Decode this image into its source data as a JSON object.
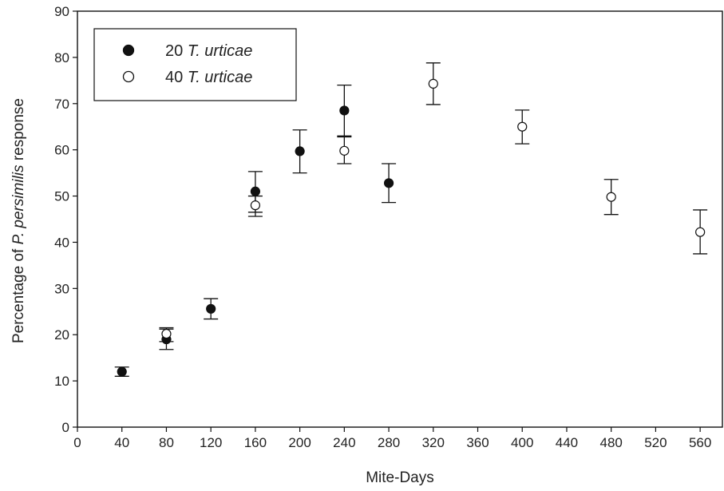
{
  "chart_data": {
    "type": "scatter",
    "xlabel": "Mite-Days",
    "ylabel_parts": [
      {
        "text": "Percentage of ",
        "italic": false
      },
      {
        "text": "P. persimilis",
        "italic": true
      },
      {
        "text": " response",
        "italic": false
      }
    ],
    "xlim": [
      0,
      580
    ],
    "ylim": [
      0,
      90
    ],
    "xticks": [
      0,
      40,
      80,
      120,
      160,
      200,
      240,
      280,
      320,
      360,
      400,
      440,
      480,
      520,
      560
    ],
    "yticks": [
      0,
      10,
      20,
      30,
      40,
      50,
      60,
      70,
      80,
      90
    ],
    "grid": false,
    "legend_position": "top-left",
    "series": [
      {
        "name_prefix": "20 ",
        "name_italic": "T. urticae",
        "marker": "filled-circle",
        "color": "#111111",
        "points": [
          {
            "x": 40,
            "y": 12.0,
            "err_low": 11.0,
            "err_high": 13.0
          },
          {
            "x": 80,
            "y": 19.0,
            "err_low": 16.8,
            "err_high": 21.2
          },
          {
            "x": 120,
            "y": 25.6,
            "err_low": 23.4,
            "err_high": 27.8
          },
          {
            "x": 160,
            "y": 51.0,
            "err_low": 46.5,
            "err_high": 55.3
          },
          {
            "x": 200,
            "y": 59.7,
            "err_low": 55.0,
            "err_high": 64.3
          },
          {
            "x": 240,
            "y": 68.5,
            "err_low": 63.0,
            "err_high": 74.0
          },
          {
            "x": 280,
            "y": 52.8,
            "err_low": 48.6,
            "err_high": 57.0
          }
        ]
      },
      {
        "name_prefix": "40 ",
        "name_italic": "T. urticae",
        "marker": "open-circle",
        "color": "#111111",
        "points": [
          {
            "x": 80,
            "y": 20.2,
            "err_low": 18.5,
            "err_high": 21.5
          },
          {
            "x": 160,
            "y": 48.0,
            "err_low": 45.6,
            "err_high": 50.0
          },
          {
            "x": 240,
            "y": 59.8,
            "err_low": 57.0,
            "err_high": 62.8
          },
          {
            "x": 320,
            "y": 74.3,
            "err_low": 69.8,
            "err_high": 78.8
          },
          {
            "x": 400,
            "y": 65.0,
            "err_low": 61.3,
            "err_high": 68.6
          },
          {
            "x": 480,
            "y": 49.8,
            "err_low": 46.0,
            "err_high": 53.6
          },
          {
            "x": 560,
            "y": 42.2,
            "err_low": 37.5,
            "err_high": 47.0
          }
        ]
      }
    ]
  }
}
